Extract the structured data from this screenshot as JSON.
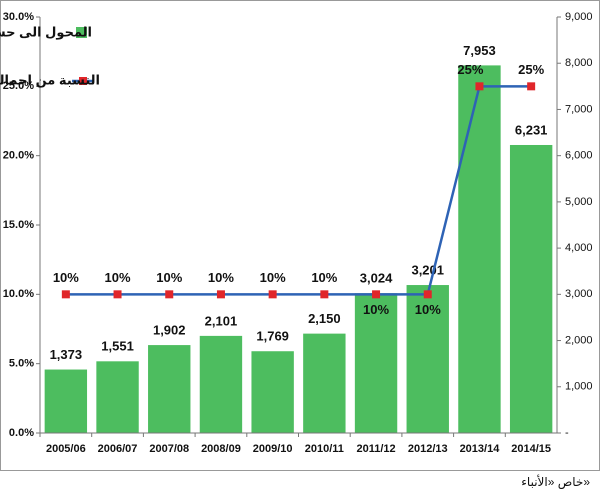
{
  "chart_data": {
    "type": "bar-line",
    "categories": [
      "2005/06",
      "2006/07",
      "2007/08",
      "2008/09",
      "2009/10",
      "2010/11",
      "2011/12",
      "2012/13",
      "2013/14",
      "2014/15"
    ],
    "series": [
      {
        "name": "المحول الى حساب الاجيال القادمة (مليون دينار)",
        "type": "bar",
        "axis": "y2",
        "color": "#4dbd5f",
        "values": [
          1373,
          1551,
          1902,
          2101,
          1769,
          2150,
          3024,
          3201,
          7953,
          6231
        ],
        "value_labels": [
          "1,373",
          "1,551",
          "1,902",
          "2,101",
          "1,769",
          "2,150",
          "3,024",
          "3,201",
          "7,953",
          "6,231"
        ]
      },
      {
        "name": "النسبة من اجمالي الايرادات",
        "type": "line",
        "axis": "y",
        "color": "#2e63b5",
        "marker_color": "#e0262a",
        "values": [
          10,
          10,
          10,
          10,
          10,
          10,
          10,
          10,
          25,
          25
        ],
        "value_labels": [
          "10%",
          "10%",
          "10%",
          "10%",
          "10%",
          "10%",
          "10%",
          "10%",
          "25%",
          "25%"
        ]
      }
    ],
    "ylim": [
      0,
      30
    ],
    "yticks": [
      {
        "value": 0,
        "label": "0.0%"
      },
      {
        "value": 5,
        "label": "5.0%"
      },
      {
        "value": 10,
        "label": "10.0%"
      },
      {
        "value": 15,
        "label": "15.0%"
      },
      {
        "value": 20,
        "label": "20.0%"
      },
      {
        "value": 25,
        "label": "25.0%"
      },
      {
        "value": 30,
        "label": "30.0%"
      }
    ],
    "y2lim": [
      0,
      9000
    ],
    "y2ticks": [
      {
        "value": 0,
        "label": "-"
      },
      {
        "value": 1000,
        "label": "1,000"
      },
      {
        "value": 2000,
        "label": "2,000"
      },
      {
        "value": 3000,
        "label": "3,000"
      },
      {
        "value": 4000,
        "label": "4,000"
      },
      {
        "value": 5000,
        "label": "5,000"
      },
      {
        "value": 6000,
        "label": "6,000"
      },
      {
        "value": 7000,
        "label": "7,000"
      },
      {
        "value": 8000,
        "label": "8,000"
      },
      {
        "value": 9000,
        "label": "9,000"
      }
    ],
    "source": "خاص «الأنباء»"
  }
}
